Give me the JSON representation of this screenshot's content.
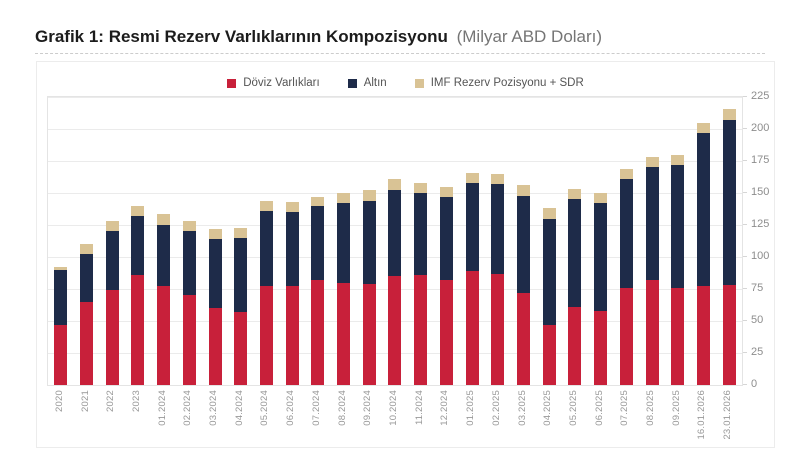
{
  "page": {
    "title_bold": "Grafik 1: Resmi Rezerv Varlıklarının Kompozisyonu",
    "title_light": "(Milyar ABD Doları)"
  },
  "chart_data": {
    "type": "bar",
    "stacked": true,
    "title": "Grafik 1: Resmi Rezerv Varlıklarının Kompozisyonu (Milyar ABD Doları)",
    "unit": "Milyar ABD Doları",
    "legend_position": "top",
    "axis_side": "right",
    "grid": true,
    "ylim": [
      0,
      225
    ],
    "ytick_step": 25,
    "categories": [
      "2020",
      "2021",
      "2022",
      "2023",
      "01.2024",
      "02.2024",
      "03.2024",
      "04.2024",
      "05.2024",
      "06.2024",
      "07.2024",
      "08.2024",
      "09.2024",
      "10.2024",
      "11.2024",
      "12.2024",
      "01.2025",
      "02.2025",
      "03.2025",
      "04.2025",
      "05.2025",
      "06.2025",
      "07.2025",
      "08.2025",
      "09.2025",
      "16.01.2026",
      "23.01.2026"
    ],
    "series": [
      {
        "name": "Döviz Varlıkları",
        "color": "#c8203a",
        "values": [
          47,
          65,
          74,
          86,
          77,
          70,
          60,
          57,
          77,
          77,
          82,
          80,
          79,
          85,
          86,
          82,
          89,
          87,
          72,
          47,
          61,
          58,
          76,
          82,
          76,
          77,
          78
        ]
      },
      {
        "name": "Altın",
        "color": "#1e2b49",
        "values": [
          43,
          37,
          46,
          46,
          48,
          50,
          54,
          58,
          59,
          58,
          58,
          62,
          65,
          67,
          64,
          65,
          69,
          70,
          76,
          83,
          84,
          84,
          85,
          88,
          96,
          120,
          129
        ]
      },
      {
        "name": "IMF Rezerv Pozisyonu + SDR",
        "color": "#d9c395",
        "values": [
          2,
          8,
          8,
          8,
          9,
          8,
          8,
          8,
          8,
          8,
          7,
          8,
          8,
          9,
          8,
          8,
          8,
          8,
          8,
          8,
          8,
          8,
          8,
          8,
          8,
          8,
          9
        ]
      }
    ],
    "totals": [
      92,
      110,
      128,
      140,
      134,
      128,
      122,
      123,
      144,
      143,
      147,
      150,
      152,
      161,
      158,
      155,
      166,
      165,
      156,
      138,
      153,
      150,
      169,
      178,
      180,
      205,
      216
    ]
  }
}
